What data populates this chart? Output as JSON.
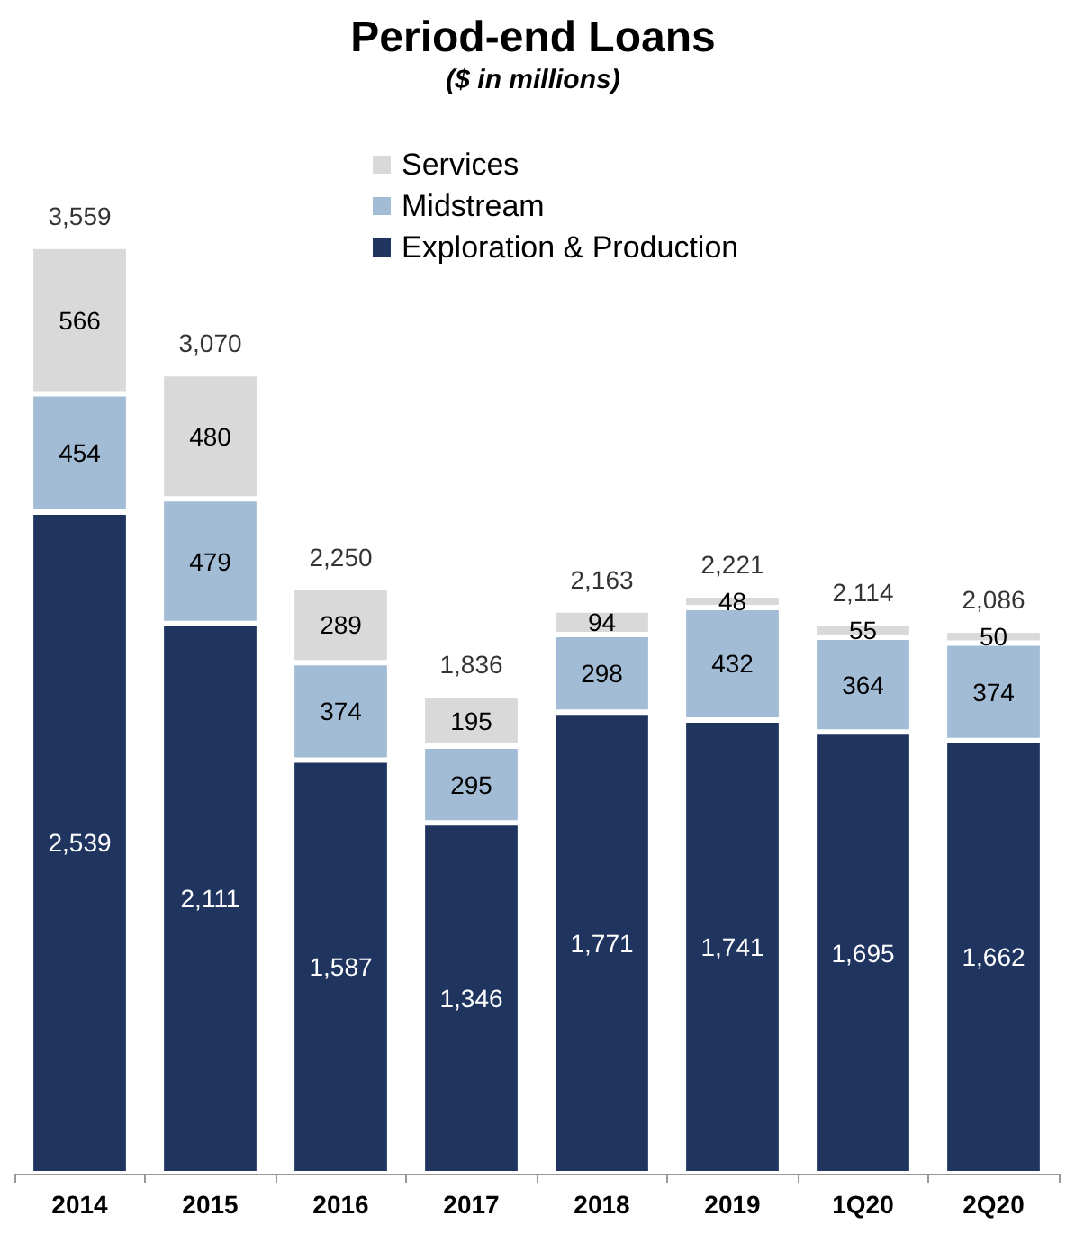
{
  "chart_data": {
    "type": "bar",
    "title": "Period-end Loans",
    "subtitle": "($ in millions)",
    "categories": [
      "2014",
      "2015",
      "2016",
      "2017",
      "2018",
      "2019",
      "1Q20",
      "2Q20"
    ],
    "series": [
      {
        "name": "Exploration & Production",
        "color": "#1f3560",
        "values": [
          2539,
          2111,
          1587,
          1346,
          1771,
          1741,
          1695,
          1662
        ],
        "value_labels": [
          "2,539",
          "2,111",
          "1,587",
          "1,346",
          "1,771",
          "1,741",
          "1,695",
          "1,662"
        ]
      },
      {
        "name": "Midstream",
        "color": "#a3bcd6",
        "values": [
          454,
          479,
          374,
          295,
          298,
          432,
          364,
          374
        ],
        "value_labels": [
          "454",
          "479",
          "374",
          "295",
          "298",
          "432",
          "364",
          "374"
        ]
      },
      {
        "name": "Services",
        "color": "#d9d9d9",
        "values": [
          566,
          480,
          289,
          195,
          94,
          48,
          55,
          50
        ],
        "value_labels": [
          "566",
          "480",
          "289",
          "195",
          "94",
          "48",
          "55",
          "50"
        ]
      }
    ],
    "stacked": true,
    "totals": [
      "3,559",
      "3,070",
      "2,250",
      "1,836",
      "2,163",
      "2,221",
      "2,114",
      "2,086"
    ],
    "legend": "top",
    "tick_labels": "x"
  }
}
